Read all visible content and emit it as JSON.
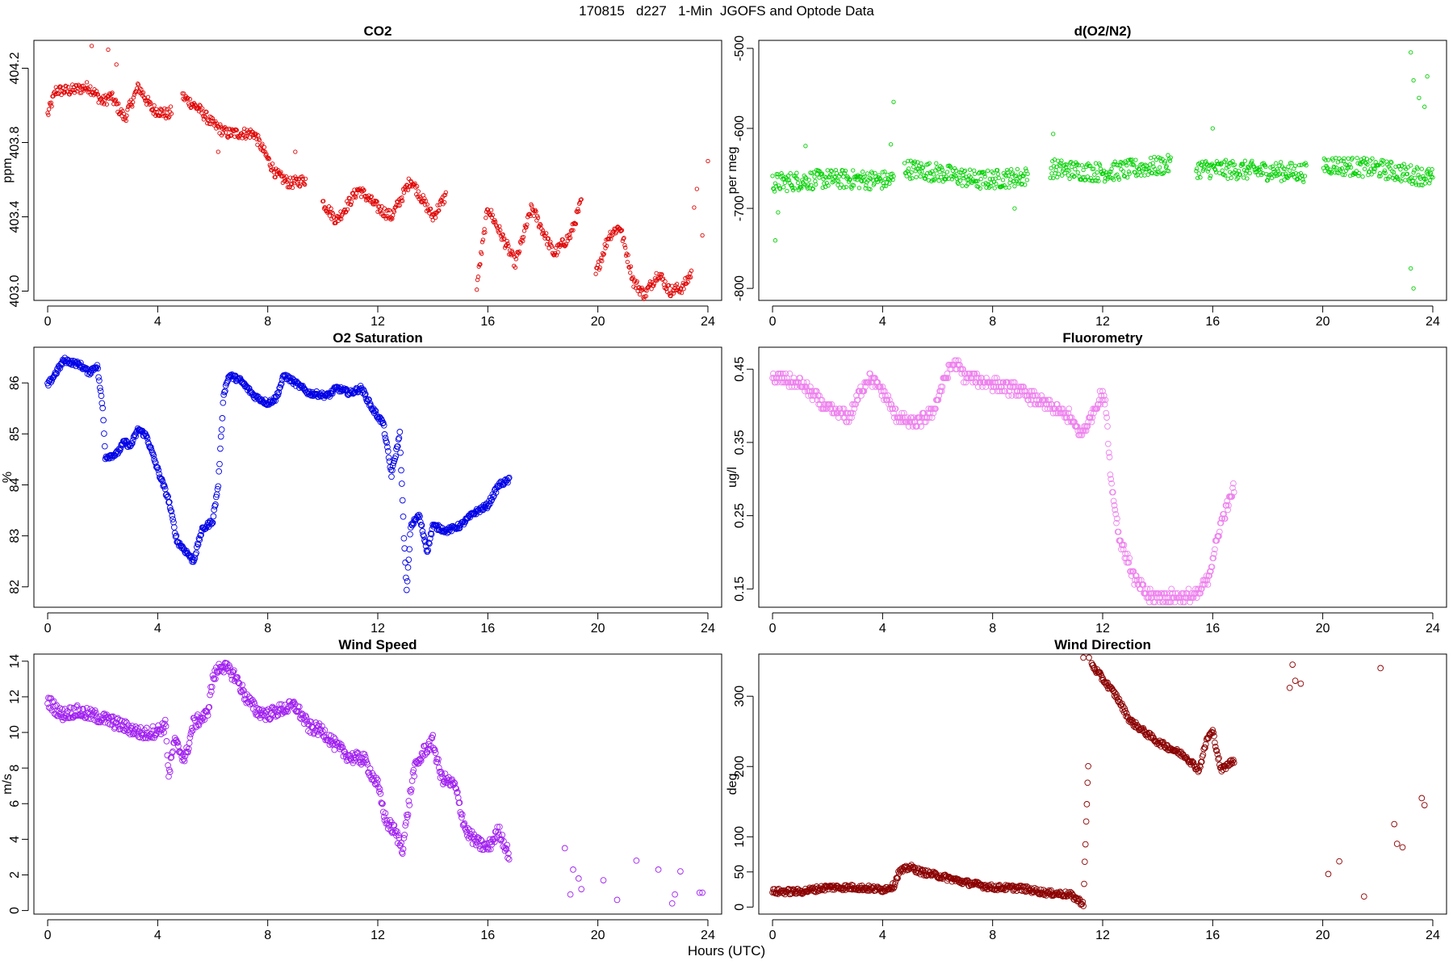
{
  "figure": {
    "title": "170815   d227   1-Min  JGOFS and Optode Data",
    "xlabel": "Hours (UTC)"
  },
  "chart_data": [
    {
      "type": "scatter",
      "title": "CO2",
      "ylabel": "ppm",
      "color": "#e00000",
      "xlim": [
        -0.5,
        24.5
      ],
      "ylim": [
        402.95,
        404.35
      ],
      "xticks": [
        0,
        4,
        8,
        12,
        16,
        20,
        24
      ],
      "yticks": [
        403.0,
        403.4,
        403.8,
        404.2
      ],
      "ytick_labels": [
        "403.0",
        "403.4",
        "403.8",
        "404.2"
      ],
      "marker_size": 2.2,
      "gaps": [
        [
          4.5,
          4.9
        ],
        [
          9.4,
          10.0
        ],
        [
          14.5,
          15.6
        ],
        [
          19.4,
          19.9
        ],
        [
          23.4,
          23.7
        ]
      ],
      "noise": 0.03,
      "profile": [
        [
          0,
          403.95
        ],
        [
          0.3,
          404.08
        ],
        [
          0.8,
          404.08
        ],
        [
          1.5,
          404.1
        ],
        [
          2.0,
          404.02
        ],
        [
          2.3,
          404.05
        ],
        [
          2.8,
          403.93
        ],
        [
          3.3,
          404.1
        ],
        [
          3.8,
          403.98
        ],
        [
          4.4,
          403.95
        ],
        [
          4.9,
          404.05
        ],
        [
          5.5,
          403.98
        ],
        [
          6.0,
          403.9
        ],
        [
          6.5,
          403.85
        ],
        [
          7.5,
          403.85
        ],
        [
          8.3,
          403.63
        ],
        [
          8.8,
          403.58
        ],
        [
          9.4,
          403.6
        ],
        [
          10.0,
          403.48
        ],
        [
          10.5,
          403.38
        ],
        [
          11.3,
          403.55
        ],
        [
          12.0,
          403.45
        ],
        [
          12.5,
          403.4
        ],
        [
          13.2,
          403.6
        ],
        [
          14.0,
          403.4
        ],
        [
          14.5,
          403.52
        ],
        [
          15.6,
          403.03
        ],
        [
          16.0,
          403.45
        ],
        [
          16.5,
          403.3
        ],
        [
          17.0,
          403.15
        ],
        [
          17.6,
          403.45
        ],
        [
          18.4,
          403.2
        ],
        [
          19.0,
          403.3
        ],
        [
          19.4,
          403.48
        ],
        [
          19.9,
          403.08
        ],
        [
          20.4,
          403.3
        ],
        [
          20.8,
          403.35
        ],
        [
          21.3,
          403.05
        ],
        [
          21.7,
          402.98
        ],
        [
          22.2,
          403.1
        ],
        [
          22.6,
          403.0
        ],
        [
          23.1,
          403.02
        ],
        [
          23.4,
          403.1
        ]
      ],
      "outliers": [
        [
          1.6,
          404.32
        ],
        [
          2.2,
          404.3
        ],
        [
          2.5,
          404.22
        ],
        [
          6.2,
          403.75
        ],
        [
          9.0,
          403.75
        ],
        [
          23.5,
          403.45
        ],
        [
          23.6,
          403.55
        ],
        [
          23.8,
          403.3
        ],
        [
          24.0,
          403.7
        ]
      ]
    },
    {
      "type": "scatter",
      "title": "d(O2/N2)",
      "ylabel": "per meg",
      "color": "#00d000",
      "xlim": [
        -0.5,
        24.5
      ],
      "ylim": [
        -815,
        -490
      ],
      "xticks": [
        0,
        4,
        8,
        12,
        16,
        20,
        24
      ],
      "yticks": [
        -800,
        -700,
        -600,
        -500
      ],
      "ytick_labels": [
        "-800",
        "-700",
        "-600",
        "-500"
      ],
      "marker_size": 2.2,
      "gaps": [
        [
          4.4,
          4.8
        ],
        [
          9.3,
          10.1
        ],
        [
          14.5,
          15.4
        ],
        [
          19.4,
          20.0
        ]
      ],
      "noise": 12,
      "profile": [
        [
          0,
          -668
        ],
        [
          2.0,
          -663
        ],
        [
          4.3,
          -665
        ],
        [
          4.8,
          -650
        ],
        [
          6.0,
          -655
        ],
        [
          7.5,
          -665
        ],
        [
          9.3,
          -660
        ],
        [
          10.1,
          -650
        ],
        [
          12.0,
          -655
        ],
        [
          14.5,
          -645
        ],
        [
          15.4,
          -650
        ],
        [
          17.0,
          -652
        ],
        [
          19.4,
          -655
        ],
        [
          20.0,
          -645
        ],
        [
          22.0,
          -650
        ],
        [
          24.0,
          -662
        ]
      ],
      "outliers": [
        [
          0.1,
          -740
        ],
        [
          0.2,
          -705
        ],
        [
          1.2,
          -622
        ],
        [
          4.4,
          -567
        ],
        [
          4.3,
          -620
        ],
        [
          8.8,
          -700
        ],
        [
          10.2,
          -607
        ],
        [
          16.0,
          -600
        ],
        [
          23.2,
          -505
        ],
        [
          23.3,
          -540
        ],
        [
          23.5,
          -562
        ],
        [
          23.7,
          -573
        ],
        [
          23.8,
          -535
        ],
        [
          23.2,
          -775
        ],
        [
          23.3,
          -800
        ],
        [
          23.9,
          -665
        ]
      ]
    },
    {
      "type": "scatter",
      "title": "O2 Saturation",
      "ylabel": "%",
      "color": "#0000e6",
      "xlim": [
        -0.5,
        24.5
      ],
      "ylim": [
        81.6,
        86.7
      ],
      "xticks": [
        0,
        4,
        8,
        12,
        16,
        20,
        24
      ],
      "yticks": [
        82,
        83,
        84,
        85,
        86
      ],
      "ytick_labels": [
        "82",
        "83",
        "84",
        "85",
        "86"
      ],
      "marker_size": 3.4,
      "gaps": [
        [
          16.9,
          30
        ]
      ],
      "noise": 0.05,
      "profile": [
        [
          0,
          85.95
        ],
        [
          0.3,
          86.2
        ],
        [
          0.6,
          86.45
        ],
        [
          1.2,
          86.35
        ],
        [
          1.5,
          86.2
        ],
        [
          1.8,
          86.35
        ],
        [
          2.0,
          85.5
        ],
        [
          2.1,
          84.55
        ],
        [
          2.5,
          84.6
        ],
        [
          2.8,
          84.85
        ],
        [
          3.0,
          84.75
        ],
        [
          3.3,
          85.1
        ],
        [
          3.6,
          84.95
        ],
        [
          4.0,
          84.3
        ],
        [
          4.4,
          83.7
        ],
        [
          4.7,
          82.9
        ],
        [
          5.1,
          82.65
        ],
        [
          5.3,
          82.5
        ],
        [
          5.6,
          83.1
        ],
        [
          6.0,
          83.3
        ],
        [
          6.2,
          84.0
        ],
        [
          6.4,
          85.8
        ],
        [
          6.6,
          86.15
        ],
        [
          7.0,
          86.05
        ],
        [
          7.5,
          85.75
        ],
        [
          8.0,
          85.6
        ],
        [
          8.3,
          85.7
        ],
        [
          8.6,
          86.15
        ],
        [
          9.0,
          86.0
        ],
        [
          9.5,
          85.8
        ],
        [
          10.2,
          85.75
        ],
        [
          10.5,
          85.9
        ],
        [
          11.0,
          85.8
        ],
        [
          11.4,
          85.9
        ],
        [
          11.8,
          85.5
        ],
        [
          12.2,
          85.2
        ],
        [
          12.5,
          84.2
        ],
        [
          12.8,
          85.0
        ],
        [
          12.95,
          83.0
        ],
        [
          13.05,
          81.9
        ],
        [
          13.2,
          83.2
        ],
        [
          13.5,
          83.4
        ],
        [
          13.8,
          82.7
        ],
        [
          14.0,
          83.2
        ],
        [
          14.5,
          83.1
        ],
        [
          15.0,
          83.2
        ],
        [
          15.5,
          83.45
        ],
        [
          16.0,
          83.6
        ],
        [
          16.4,
          84.0
        ],
        [
          16.8,
          84.1
        ]
      ],
      "outliers": []
    },
    {
      "type": "scatter",
      "title": "Fluorometry",
      "ylabel": "ug/l",
      "color": "#ee82ee",
      "xlim": [
        -0.5,
        24.5
      ],
      "ylim": [
        0.125,
        0.48
      ],
      "xticks": [
        0,
        4,
        8,
        12,
        16,
        20,
        24
      ],
      "yticks": [
        0.15,
        0.25,
        0.35,
        0.45
      ],
      "ytick_labels": [
        "0.15",
        "0.25",
        "0.35",
        "0.45"
      ],
      "marker_size": 3.4,
      "quantize": 0.006,
      "gaps": [
        [
          16.9,
          30
        ]
      ],
      "noise": 0.008,
      "profile": [
        [
          0,
          0.44
        ],
        [
          1.0,
          0.43
        ],
        [
          1.5,
          0.415
        ],
        [
          2.0,
          0.395
        ],
        [
          2.8,
          0.385
        ],
        [
          3.2,
          0.42
        ],
        [
          3.5,
          0.44
        ],
        [
          4.0,
          0.42
        ],
        [
          4.5,
          0.385
        ],
        [
          5.2,
          0.375
        ],
        [
          5.8,
          0.39
        ],
        [
          6.3,
          0.44
        ],
        [
          6.6,
          0.46
        ],
        [
          7.0,
          0.44
        ],
        [
          8.0,
          0.43
        ],
        [
          9.0,
          0.42
        ],
        [
          10.0,
          0.4
        ],
        [
          10.8,
          0.385
        ],
        [
          11.2,
          0.36
        ],
        [
          11.5,
          0.38
        ],
        [
          11.9,
          0.41
        ],
        [
          12.1,
          0.41
        ],
        [
          12.3,
          0.3
        ],
        [
          12.6,
          0.22
        ],
        [
          13.2,
          0.16
        ],
        [
          13.7,
          0.14
        ],
        [
          14.5,
          0.14
        ],
        [
          15.4,
          0.14
        ],
        [
          15.8,
          0.16
        ],
        [
          16.3,
          0.24
        ],
        [
          16.8,
          0.29
        ]
      ],
      "outliers": []
    },
    {
      "type": "scatter",
      "title": "Wind Speed",
      "ylabel": "m/s",
      "color": "#a020f0",
      "xlim": [
        -0.5,
        24.5
      ],
      "ylim": [
        -0.2,
        14.4
      ],
      "xticks": [
        0,
        4,
        8,
        12,
        16,
        20,
        24
      ],
      "yticks": [
        0,
        2,
        4,
        6,
        8,
        10,
        12,
        14
      ],
      "ytick_labels": [
        "0",
        "2",
        "4",
        "6",
        "8",
        "10",
        "12",
        "14"
      ],
      "marker_size": 3.4,
      "gaps": [
        [
          16.9,
          30
        ]
      ],
      "noise": 0.35,
      "profile": [
        [
          0,
          11.8
        ],
        [
          0.5,
          11.0
        ],
        [
          1.0,
          11.2
        ],
        [
          2.0,
          10.8
        ],
        [
          3.0,
          10.2
        ],
        [
          3.5,
          9.9
        ],
        [
          4.0,
          10.1
        ],
        [
          4.3,
          10.4
        ],
        [
          4.4,
          7.5
        ],
        [
          4.6,
          9.5
        ],
        [
          5.0,
          8.5
        ],
        [
          5.3,
          10.5
        ],
        [
          5.8,
          11.0
        ],
        [
          6.0,
          13.0
        ],
        [
          6.3,
          13.8
        ],
        [
          6.8,
          13.2
        ],
        [
          7.2,
          12.0
        ],
        [
          7.6,
          11.2
        ],
        [
          8.0,
          11.0
        ],
        [
          8.5,
          11.3
        ],
        [
          9.0,
          11.5
        ],
        [
          9.5,
          10.3
        ],
        [
          10.0,
          10.1
        ],
        [
          10.5,
          9.2
        ],
        [
          11.0,
          8.6
        ],
        [
          11.5,
          8.5
        ],
        [
          12.0,
          7.0
        ],
        [
          12.3,
          5.0
        ],
        [
          12.6,
          4.5
        ],
        [
          12.9,
          3.5
        ],
        [
          13.3,
          7.8
        ],
        [
          13.7,
          9.0
        ],
        [
          14.0,
          9.5
        ],
        [
          14.3,
          7.5
        ],
        [
          14.8,
          7.0
        ],
        [
          15.2,
          4.5
        ],
        [
          15.6,
          3.8
        ],
        [
          16.0,
          3.5
        ],
        [
          16.4,
          4.5
        ],
        [
          16.8,
          3.0
        ]
      ],
      "outliers": [
        [
          18.8,
          3.5
        ],
        [
          19.0,
          0.9
        ],
        [
          19.1,
          2.3
        ],
        [
          19.3,
          1.8
        ],
        [
          19.4,
          1.2
        ],
        [
          20.2,
          1.7
        ],
        [
          20.7,
          0.6
        ],
        [
          21.4,
          2.8
        ],
        [
          22.2,
          2.3
        ],
        [
          22.7,
          0.4
        ],
        [
          22.8,
          0.9
        ],
        [
          23.0,
          2.2
        ],
        [
          23.7,
          1.0
        ],
        [
          23.8,
          1.0
        ]
      ]
    },
    {
      "type": "scatter",
      "title": "Wind Direction",
      "ylabel": "deg",
      "color": "#8b0000",
      "xlim": [
        -0.5,
        24.5
      ],
      "ylim": [
        -10,
        360
      ],
      "xticks": [
        0,
        4,
        8,
        12,
        16,
        20,
        24
      ],
      "yticks": [
        0,
        50,
        100,
        200,
        300
      ],
      "ytick_labels": [
        "0",
        "50",
        "100",
        "200",
        "300"
      ],
      "marker_size": 3.4,
      "gaps": [
        [
          11.5,
          11.6
        ],
        [
          16.9,
          30
        ]
      ],
      "noise": 4,
      "profile": [
        [
          0,
          22
        ],
        [
          1.0,
          22
        ],
        [
          2.0,
          28
        ],
        [
          3.0,
          28
        ],
        [
          4.0,
          25
        ],
        [
          4.4,
          30
        ],
        [
          4.6,
          50
        ],
        [
          5.0,
          57
        ],
        [
          5.4,
          50
        ],
        [
          6.0,
          45
        ],
        [
          7.0,
          35
        ],
        [
          8.0,
          28
        ],
        [
          9.0,
          27
        ],
        [
          10.0,
          20
        ],
        [
          10.8,
          18
        ],
        [
          11.3,
          5
        ],
        [
          11.6,
          345
        ],
        [
          12.0,
          325
        ],
        [
          12.5,
          300
        ],
        [
          13.0,
          265
        ],
        [
          13.5,
          250
        ],
        [
          14.0,
          235
        ],
        [
          14.5,
          225
        ],
        [
          15.0,
          215
        ],
        [
          15.5,
          195
        ],
        [
          15.8,
          240
        ],
        [
          16.0,
          250
        ],
        [
          16.3,
          195
        ],
        [
          16.8,
          210
        ]
      ],
      "outliers": [
        [
          11.3,
          355
        ],
        [
          11.5,
          355
        ],
        [
          18.8,
          312
        ],
        [
          18.9,
          345
        ],
        [
          19.0,
          322
        ],
        [
          19.2,
          318
        ],
        [
          20.2,
          47
        ],
        [
          20.6,
          65
        ],
        [
          21.5,
          15
        ],
        [
          22.1,
          340
        ],
        [
          22.6,
          118
        ],
        [
          22.7,
          90
        ],
        [
          22.9,
          85
        ],
        [
          23.6,
          155
        ],
        [
          23.7,
          145
        ]
      ]
    }
  ]
}
